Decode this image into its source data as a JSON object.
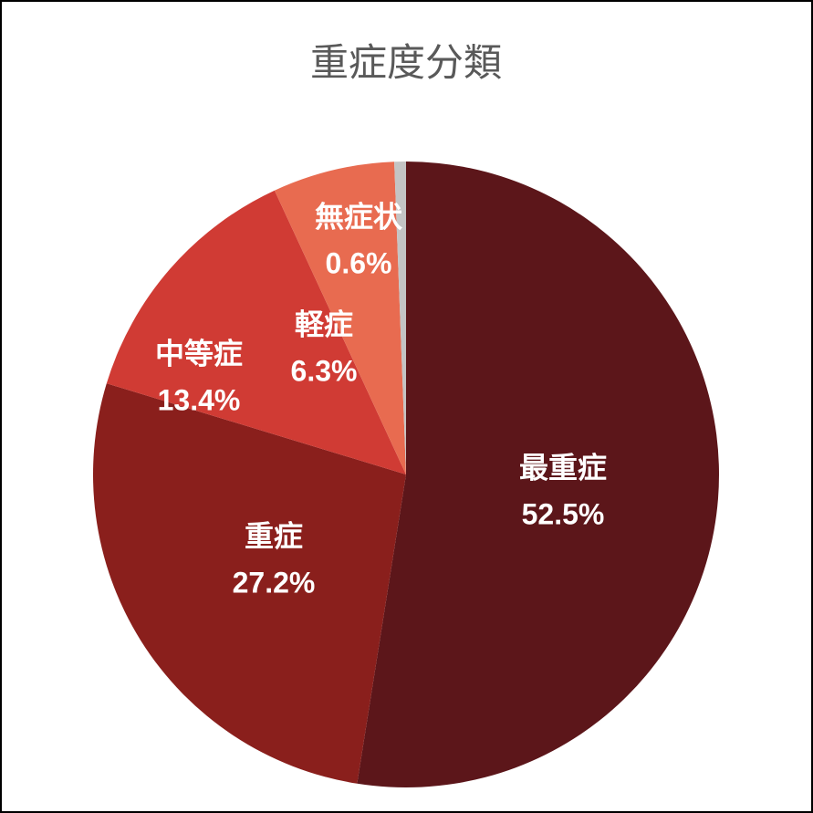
{
  "chart_data": {
    "type": "pie",
    "title": "重症度分類",
    "categories": [
      "最重症",
      "重症",
      "中等症",
      "軽症",
      "無症状"
    ],
    "values": [
      52.5,
      27.2,
      13.4,
      6.3,
      0.6
    ],
    "value_labels": [
      "52.5%",
      "27.2%",
      "13.4%",
      "6.3%",
      "0.6%"
    ],
    "colors": [
      "#5c161a",
      "#8a1f1c",
      "#d03b34",
      "#e86b50",
      "#c4c4c4"
    ]
  }
}
